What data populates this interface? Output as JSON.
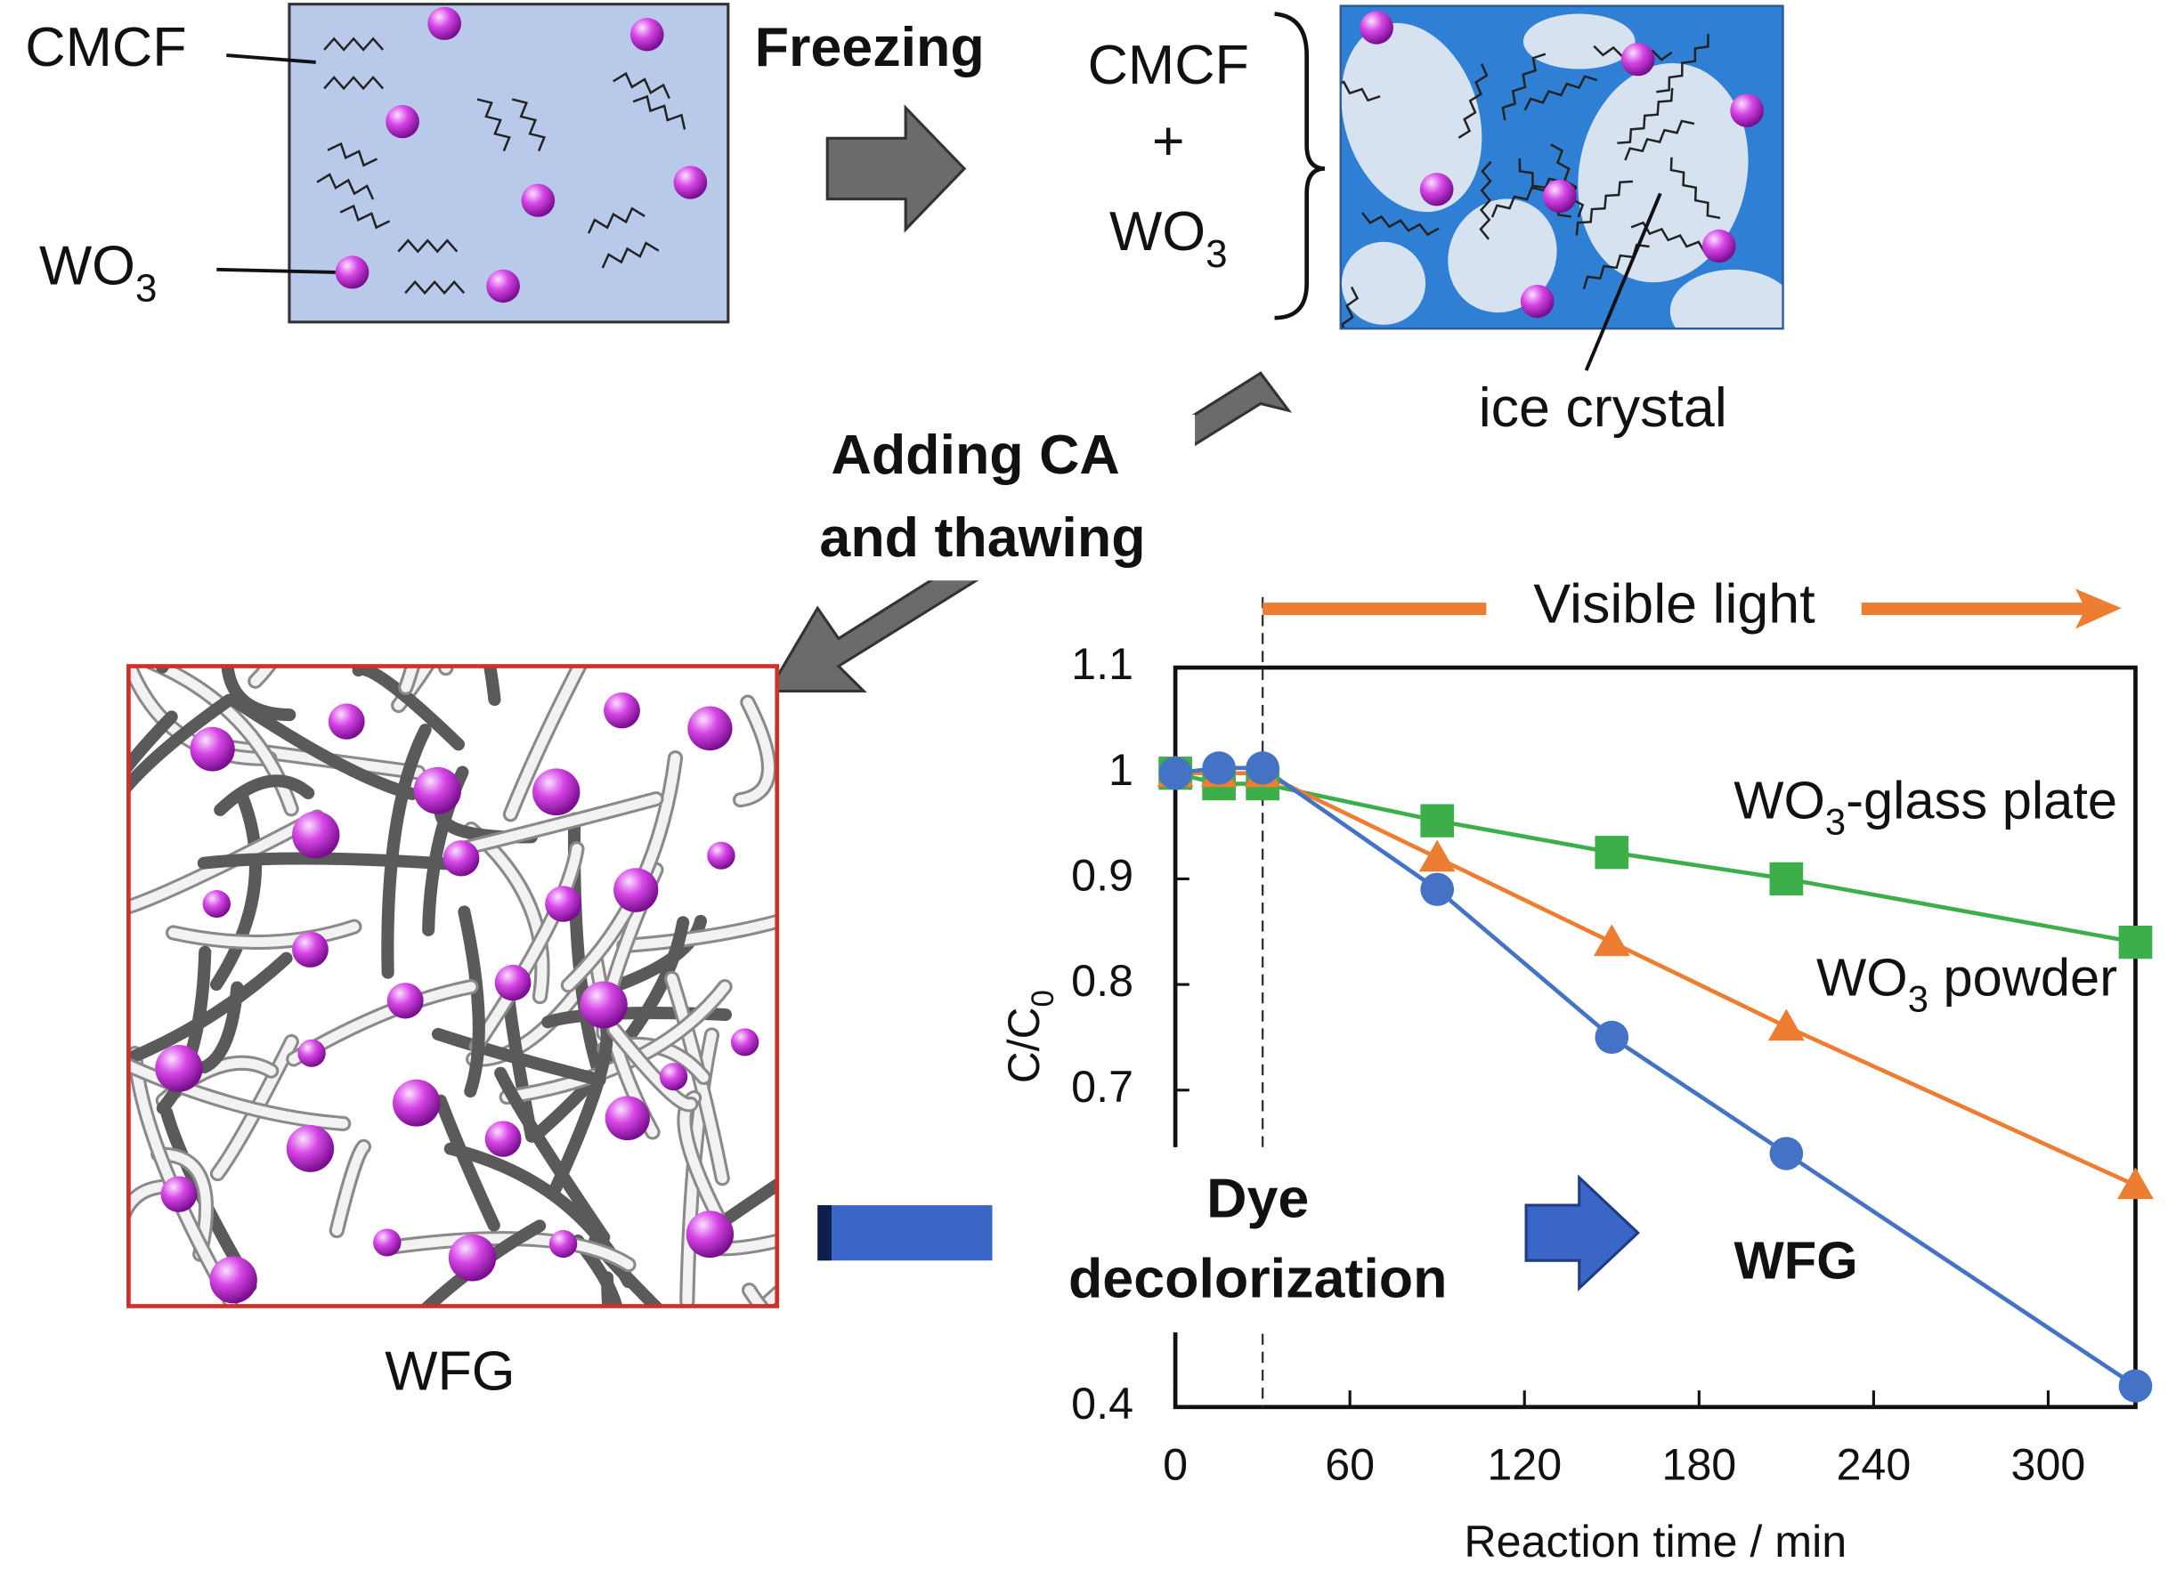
{
  "diagram": {
    "dispersion": {
      "fiber_label": "CMCF",
      "particle_label": "WO3"
    },
    "step1": "Freezing",
    "frozen": {
      "top": "CMCF",
      "plus": "+",
      "bottom": "WO3",
      "ice_label": "ice crystal"
    },
    "step2": [
      "Adding CA",
      "and thawing"
    ],
    "gel_label": "WFG",
    "step3": [
      "Dye",
      "decolorization"
    ]
  },
  "chart_data": {
    "type": "line",
    "xlabel": "Reaction time / min",
    "ylabel": "C/C0",
    "x": [
      0,
      15,
      30,
      90,
      150,
      210,
      330
    ],
    "xlim": [
      0,
      330
    ],
    "xticks": [
      0,
      60,
      120,
      180,
      240,
      300
    ],
    "ylim": [
      0.4,
      1.1
    ],
    "yticks": [
      0.4,
      0.7,
      0.8,
      0.9,
      1,
      1.1
    ],
    "annotation": {
      "text": "Visible light",
      "x": 30
    },
    "series": [
      {
        "name": "WO3-glass plate",
        "color": "#3cae4a",
        "marker": "square",
        "values": [
          1,
          0.99,
          0.99,
          0.955,
          0.925,
          0.9,
          0.84
        ]
      },
      {
        "name": "WO3 powder",
        "color": "#ed7d31",
        "marker": "triangle",
        "values": [
          1,
          1,
          1,
          0.92,
          0.84,
          0.76,
          0.61
        ]
      },
      {
        "name": "WFG",
        "color": "#4472c4",
        "marker": "circle",
        "label_color": "#d0302a",
        "values": [
          1,
          1.005,
          1.005,
          0.89,
          0.75,
          0.64,
          0.42
        ]
      }
    ]
  }
}
